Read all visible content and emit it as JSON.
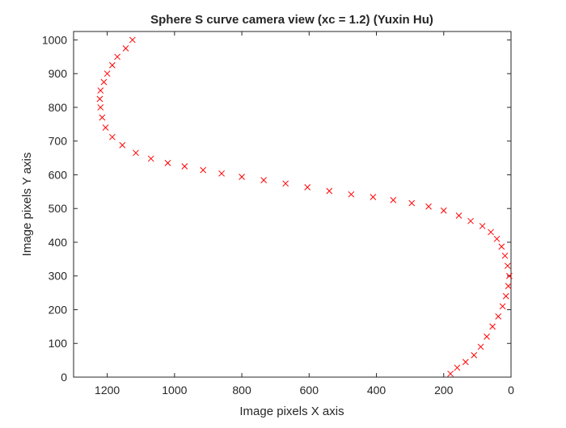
{
  "chart_data": {
    "type": "scatter",
    "title": "Sphere S curve camera view (xc = 1.2) (Yuxin Hu)",
    "xlabel": "Image pixels X axis",
    "ylabel": "Image pixels Y axis",
    "xlim": [
      0,
      1300
    ],
    "ylim": [
      0,
      1025
    ],
    "x_reversed": true,
    "grid": false,
    "x_ticks": [
      1200,
      1000,
      800,
      600,
      400,
      200,
      0
    ],
    "y_ticks": [
      0,
      100,
      200,
      300,
      400,
      500,
      600,
      700,
      800,
      900,
      1000
    ],
    "marker": "x",
    "marker_color": "#ff0000",
    "series": [
      {
        "x": [
          1125,
          1145,
          1170,
          1185,
          1200,
          1210,
          1220,
          1222,
          1220,
          1215,
          1205,
          1185,
          1155,
          1115,
          1070,
          1020,
          970,
          915,
          860,
          800,
          735,
          670,
          605,
          540,
          475,
          410,
          350,
          295,
          245,
          200,
          155,
          120,
          85,
          60,
          42,
          28,
          18,
          10,
          5,
          8,
          15,
          25,
          38,
          55,
          72,
          90,
          110,
          135,
          160,
          180
        ],
        "y": [
          1000,
          975,
          950,
          925,
          900,
          875,
          850,
          825,
          800,
          770,
          740,
          712,
          688,
          665,
          648,
          635,
          625,
          614,
          604,
          594,
          584,
          574,
          563,
          552,
          542,
          534,
          525,
          516,
          506,
          494,
          479,
          463,
          448,
          430,
          410,
          387,
          360,
          330,
          300,
          270,
          240,
          210,
          180,
          150,
          120,
          90,
          65,
          45,
          28,
          10
        ]
      }
    ]
  }
}
